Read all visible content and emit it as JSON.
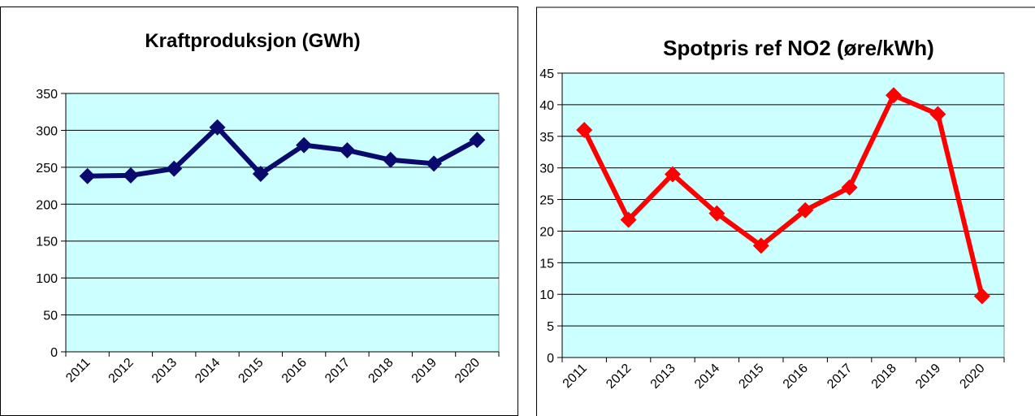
{
  "chart_data": [
    {
      "type": "line",
      "title": "Kraftproduksjon (GWh)",
      "xlabel": "",
      "ylabel": "",
      "categories": [
        "2011",
        "2012",
        "2013",
        "2014",
        "2015",
        "2016",
        "2017",
        "2018",
        "2019",
        "2020"
      ],
      "series": [
        {
          "values": [
            238,
            239,
            248,
            304,
            241,
            280,
            273,
            260,
            255,
            287
          ]
        }
      ],
      "ylim": [
        0,
        350
      ],
      "yticks": [
        "0",
        "50",
        "100",
        "150",
        "200",
        "250",
        "300",
        "350"
      ],
      "grid": true,
      "legend": "none",
      "colors": {
        "line": "#0a0a6e",
        "plot_bg": "#ccffff",
        "gridline": "#000000"
      }
    },
    {
      "type": "line",
      "title": "Spotpris ref  NO2 (øre/kWh)",
      "xlabel": "",
      "ylabel": "",
      "categories": [
        "2011",
        "2012",
        "2013",
        "2014",
        "2015",
        "2016",
        "2017",
        "2018",
        "2019",
        "2020"
      ],
      "series": [
        {
          "values": [
            36,
            21.8,
            29,
            22.8,
            17.7,
            23.3,
            26.9,
            41.5,
            38.5,
            9.7
          ]
        }
      ],
      "ylim": [
        0,
        45
      ],
      "yticks": [
        "0",
        "5",
        "10",
        "15",
        "20",
        "25",
        "30",
        "35",
        "40",
        "45"
      ],
      "grid": true,
      "legend": "none",
      "colors": {
        "line": "#ff0000",
        "plot_bg": "#ccffff",
        "gridline": "#000000"
      }
    }
  ]
}
